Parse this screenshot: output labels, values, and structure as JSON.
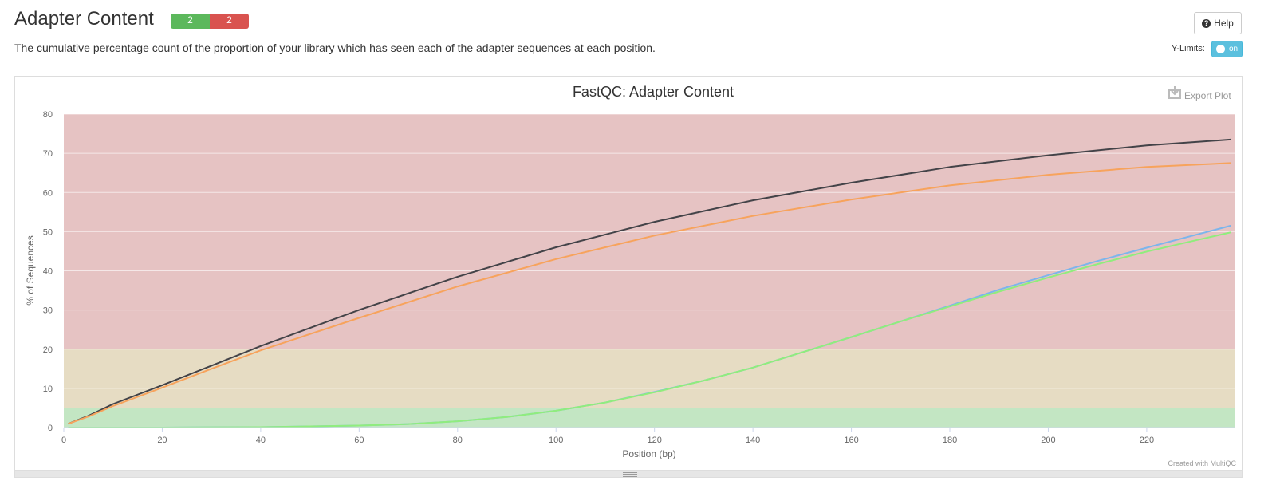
{
  "section": {
    "title": "Adapter Content",
    "status_pass": "2",
    "status_fail": "2",
    "help_label": "Help",
    "description": "The cumulative percentage count of the proportion of your library which has seen each of the adapter sequences at each position.",
    "ylimits_label": "Y-Limits:",
    "toggle_label": "on"
  },
  "plot": {
    "export_label": "Export Plot",
    "credit": "Created with MultiQC"
  },
  "colors": {
    "pass": "#5cb85c",
    "fail": "#d9534f",
    "band_fail": "#e6c3c3",
    "band_warn": "#e6dcc3",
    "band_pass": "#c3e6c3",
    "toggle": "#5bc0de"
  },
  "chart_data": {
    "type": "line",
    "title": "FastQC: Adapter Content",
    "xlabel": "Position (bp)",
    "ylabel": "% of Sequences",
    "xlim": [
      0,
      238
    ],
    "ylim": [
      0,
      80
    ],
    "xticks": [
      0,
      20,
      40,
      60,
      80,
      100,
      120,
      140,
      160,
      180,
      200,
      220
    ],
    "yticks": [
      0,
      10,
      20,
      30,
      40,
      50,
      60,
      70,
      80
    ],
    "grid": true,
    "legend": "none",
    "bands": [
      {
        "from": 0,
        "to": 5,
        "color": "#c3e6c3"
      },
      {
        "from": 5,
        "to": 20,
        "color": "#e6dcc3"
      },
      {
        "from": 20,
        "to": 80,
        "color": "#e6c3c3"
      }
    ],
    "series": [
      {
        "color": "#434348",
        "x": [
          1,
          5,
          10,
          20,
          30,
          40,
          60,
          80,
          100,
          120,
          140,
          160,
          180,
          200,
          220,
          237
        ],
        "y": [
          1.0,
          3.0,
          6.0,
          10.8,
          15.8,
          20.8,
          30.0,
          38.5,
          46.0,
          52.5,
          58.0,
          62.5,
          66.5,
          69.5,
          72.0,
          73.5
        ]
      },
      {
        "color": "#f7a35c",
        "x": [
          1,
          5,
          10,
          20,
          30,
          40,
          60,
          80,
          100,
          120,
          140,
          160,
          180,
          200,
          220,
          237
        ],
        "y": [
          1.0,
          2.8,
          5.5,
          10.2,
          15.0,
          19.7,
          28.0,
          36.0,
          43.0,
          49.0,
          54.0,
          58.2,
          61.8,
          64.5,
          66.5,
          67.5
        ]
      },
      {
        "color": "#7cb5ec",
        "x": [
          1,
          20,
          40,
          60,
          70,
          80,
          90,
          100,
          110,
          120,
          130,
          140,
          150,
          160,
          170,
          180,
          190,
          200,
          210,
          220,
          230,
          237
        ],
        "y": [
          0,
          0,
          0.1,
          0.5,
          0.9,
          1.6,
          2.7,
          4.3,
          6.4,
          9.1,
          12.0,
          15.3,
          19.2,
          23.1,
          27.1,
          31.1,
          35.2,
          38.9,
          42.5,
          45.9,
          49.2,
          51.5
        ]
      },
      {
        "color": "#90ed7d",
        "x": [
          1,
          20,
          40,
          60,
          70,
          80,
          90,
          100,
          110,
          120,
          130,
          140,
          150,
          160,
          170,
          180,
          190,
          200,
          210,
          220,
          230,
          237
        ],
        "y": [
          0,
          0,
          0.1,
          0.5,
          0.9,
          1.6,
          2.7,
          4.3,
          6.4,
          9.0,
          12.0,
          15.3,
          19.2,
          23.1,
          27.1,
          30.9,
          34.7,
          38.3,
          41.7,
          44.9,
          47.8,
          49.8
        ]
      }
    ]
  }
}
